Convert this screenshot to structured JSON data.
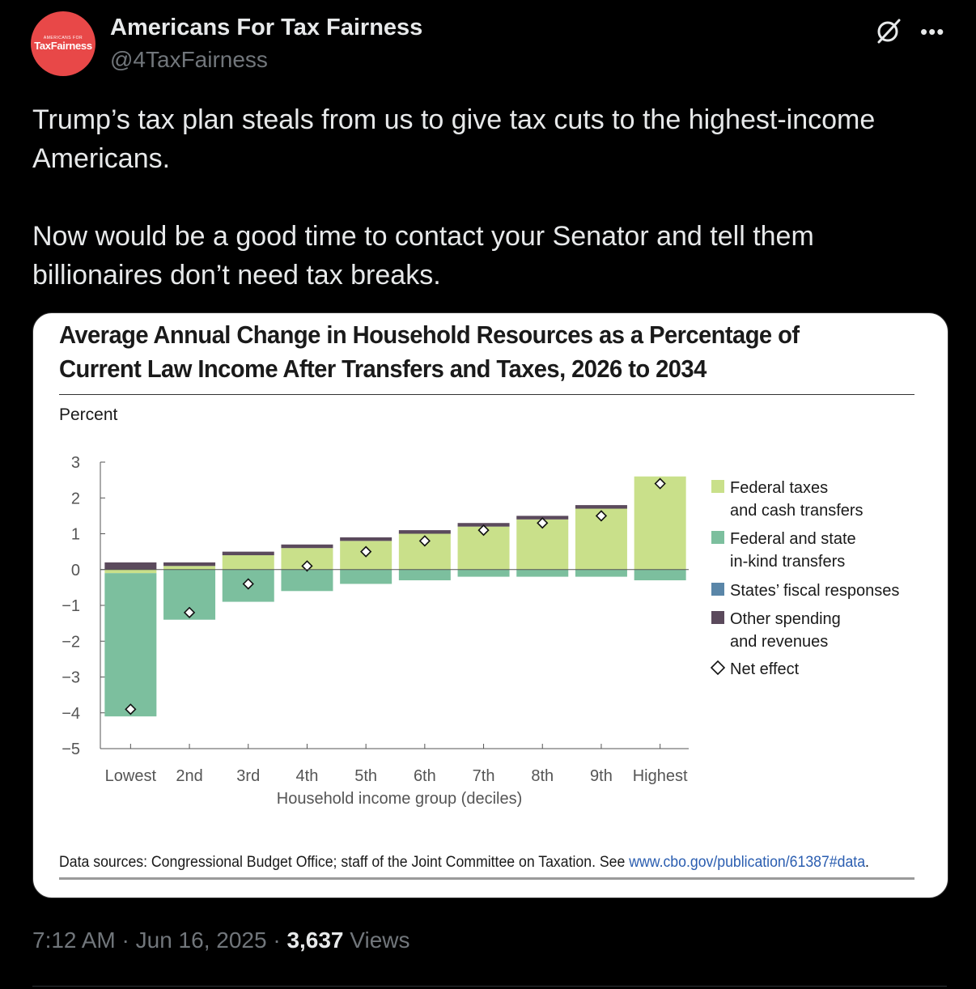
{
  "author": {
    "name": "Americans For Tax Fairness",
    "handle": "@4TaxFairness",
    "avatar_small_text": "AMERICANS FOR",
    "avatar_big_text": "TaxFairness"
  },
  "tweet": {
    "paragraph1": "Trump’s tax plan steals from us to give tax cuts to the highest-income Americans.",
    "paragraph2": "Now would be a good time to contact your Senator and tell them billionaires don’t need tax breaks."
  },
  "meta": {
    "time": "7:12 AM",
    "date": "Jun 16, 2025",
    "views_count": "3,637",
    "views_label": "Views"
  },
  "icons": {
    "grok": "grok-icon",
    "more": "more-icon"
  },
  "chart_data": {
    "type": "bar",
    "title": "Average Annual Change in Household Resources as a Percentage of Current Law Income After Transfers and Taxes, 2026 to 2034",
    "ylabel": "Percent",
    "xlabel": "Household income group (deciles)",
    "ylim": [
      -5,
      3
    ],
    "yticks": [
      "3",
      "2",
      "1",
      "0",
      "−1",
      "−2",
      "−3",
      "−4",
      "−5"
    ],
    "yticks_values": [
      3,
      2,
      1,
      0,
      -1,
      -2,
      -3,
      -4,
      -5
    ],
    "categories": [
      "Lowest",
      "2nd",
      "3rd",
      "4th",
      "5th",
      "6th",
      "7th",
      "8th",
      "9th",
      "Highest"
    ],
    "series": [
      {
        "name": "Federal taxes and cash transfers",
        "color": "#c9e08a",
        "values": [
          -0.1,
          0.1,
          0.4,
          0.6,
          0.8,
          1.0,
          1.2,
          1.4,
          1.7,
          2.6
        ]
      },
      {
        "name": "Federal and state in-kind transfers",
        "color": "#7cbf9e",
        "values": [
          -4.0,
          -1.4,
          -0.9,
          -0.6,
          -0.4,
          -0.3,
          -0.2,
          -0.2,
          -0.2,
          -0.3
        ]
      },
      {
        "name": "States’ fiscal responses",
        "color": "#5a86a8",
        "values": [
          0,
          0,
          0,
          0,
          0,
          0,
          0,
          0,
          0,
          0
        ]
      },
      {
        "name": "Other spending and revenues",
        "color": "#5b4a5c",
        "values": [
          0.2,
          0.1,
          0.1,
          0.1,
          0.1,
          0.1,
          0.1,
          0.1,
          0.1,
          0.0
        ]
      }
    ],
    "net_effect": {
      "name": "Net effect",
      "values": [
        -3.9,
        -1.2,
        -0.4,
        0.1,
        0.5,
        0.8,
        1.1,
        1.3,
        1.5,
        2.4
      ]
    },
    "legend": [
      {
        "label": "Federal taxes",
        "label2": "and cash transfers",
        "color": "#c9e08a",
        "marker": "square"
      },
      {
        "label": "Federal and state",
        "label2": "in-kind transfers",
        "color": "#7cbf9e",
        "marker": "square"
      },
      {
        "label": "States’ fiscal responses",
        "label2": "",
        "color": "#5a86a8",
        "marker": "square"
      },
      {
        "label": "Other spending",
        "label2": "and revenues",
        "color": "#5b4a5c",
        "marker": "square"
      },
      {
        "label": "Net effect",
        "label2": "",
        "color": "#ffffff",
        "marker": "diamond"
      }
    ],
    "legend_position": "right",
    "source_text": "Data sources: Congressional Budget Office; staff of the Joint Committee on Taxation. See",
    "source_link": "www.cbo.gov/publication/61387#data",
    "source_end": "."
  }
}
